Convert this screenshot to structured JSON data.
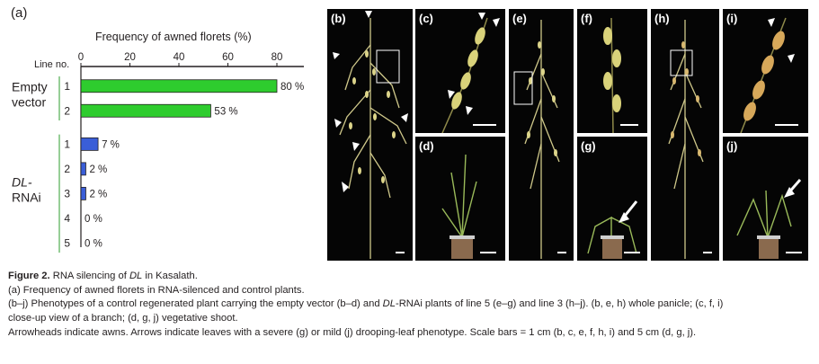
{
  "panel_a_label": "(a)",
  "chart_data": {
    "type": "bar",
    "orientation": "horizontal",
    "title": "Frequency of awned florets (%)",
    "xlim": [
      0,
      80
    ],
    "x_ticks": [
      "0",
      "20",
      "40",
      "60",
      "80"
    ],
    "y_axis_header": "Line no.",
    "groups": [
      {
        "label_lines": [
          "Empty",
          "vector"
        ],
        "color": "#2ecc2e",
        "lines": [
          {
            "no": "1",
            "value": 80,
            "label": "80 %"
          },
          {
            "no": "2",
            "value": 53,
            "label": "53 %"
          }
        ]
      },
      {
        "label_lines": [
          "DL-",
          "RNAi"
        ],
        "color": "#3a5ed8",
        "lines": [
          {
            "no": "1",
            "value": 7,
            "label": "7 %"
          },
          {
            "no": "2",
            "value": 2,
            "label": "2 %"
          },
          {
            "no": "3",
            "value": 2,
            "label": "2 %"
          },
          {
            "no": "4",
            "value": 0,
            "label": "0 %"
          },
          {
            "no": "5",
            "value": 0,
            "label": "0 %"
          }
        ]
      }
    ]
  },
  "photos": {
    "b": "(b)",
    "c": "(c)",
    "d": "(d)",
    "e": "(e)",
    "f": "(f)",
    "g": "(g)",
    "h": "(h)",
    "i": "(i)",
    "j": "(j)"
  },
  "caption": {
    "figure_label": "Figure 2.",
    "title_pre": "RNA silencing of ",
    "title_italic": "DL",
    "title_post": " in Kasalath.",
    "line_a": "(a) Frequency of awned florets in RNA-silenced and control plants.",
    "line_b_pre": "(b–j) Phenotypes of a control regenerated plant carrying the empty vector (b–d) and ",
    "line_b_italic": "DL",
    "line_b_post": "-RNAi plants of line 5 (e–g) and line 3 (h–j). (b, e, h) whole panicle; (c, f, i)",
    "line_c": "close-up view of a branch; (d, g, j) vegetative shoot.",
    "line_d": "Arrowheads indicate awns. Arrows indicate leaves with a severe (g) or mild (j) drooping-leaf phenotype. Scale bars = 1 cm (b, c, e, f, h, i) and 5 cm (d, g, j)."
  }
}
